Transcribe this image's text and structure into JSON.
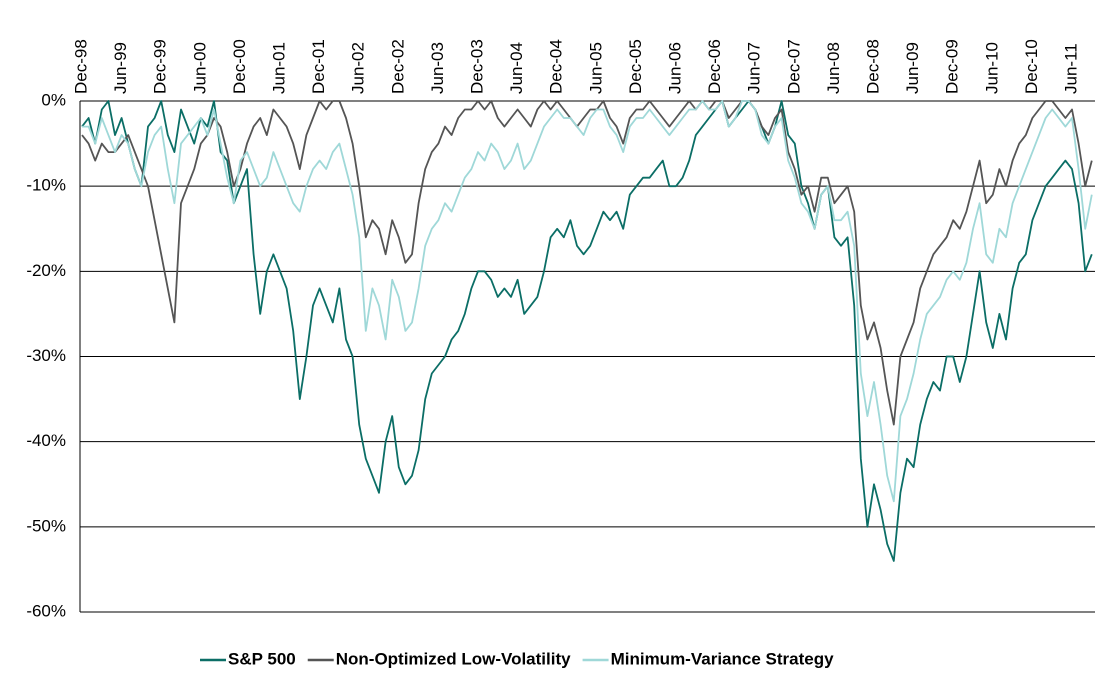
{
  "chart_data": {
    "type": "line",
    "categories": [
      "Dec-98",
      null,
      null,
      null,
      null,
      null,
      "Jun-99",
      null,
      null,
      null,
      null,
      null,
      "Dec-99",
      null,
      null,
      null,
      null,
      null,
      "Jun-00",
      null,
      null,
      null,
      null,
      null,
      "Dec-00",
      null,
      null,
      null,
      null,
      null,
      "Jun-01",
      null,
      null,
      null,
      null,
      null,
      "Dec-01",
      null,
      null,
      null,
      null,
      null,
      "Jun-02",
      null,
      null,
      null,
      null,
      null,
      "Dec-02",
      null,
      null,
      null,
      null,
      null,
      "Jun-03",
      null,
      null,
      null,
      null,
      null,
      "Dec-03",
      null,
      null,
      null,
      null,
      null,
      "Jun-04",
      null,
      null,
      null,
      null,
      null,
      "Dec-04",
      null,
      null,
      null,
      null,
      null,
      "Jun-05",
      null,
      null,
      null,
      null,
      null,
      "Dec-05",
      null,
      null,
      null,
      null,
      null,
      "Jun-06",
      null,
      null,
      null,
      null,
      null,
      "Dec-06",
      null,
      null,
      null,
      null,
      null,
      "Jun-07",
      null,
      null,
      null,
      null,
      null,
      "Dec-07",
      null,
      null,
      null,
      null,
      null,
      "Jun-08",
      null,
      null,
      null,
      null,
      null,
      "Dec-08",
      null,
      null,
      null,
      null,
      null,
      "Jun-09",
      null,
      null,
      null,
      null,
      null,
      "Dec-09",
      null,
      null,
      null,
      null,
      null,
      "Jun-10",
      null,
      null,
      null,
      null,
      null,
      "Dec-10",
      null,
      null,
      null,
      null,
      null,
      "Jun-11",
      null,
      null,
      null
    ],
    "series": [
      {
        "name": "S&P 500",
        "color": "#0b6e66",
        "values": [
          -3,
          -2,
          -5,
          -1,
          0,
          -4,
          -2,
          -5,
          -8,
          -10,
          -3,
          -2,
          0,
          -4,
          -6,
          -1,
          -3,
          -5,
          -2,
          -3,
          0,
          -6,
          -7,
          -12,
          -10,
          -8,
          -18,
          -25,
          -20,
          -18,
          -20,
          -22,
          -27,
          -35,
          -30,
          -24,
          -22,
          -24,
          -26,
          -22,
          -28,
          -30,
          -38,
          -42,
          -44,
          -46,
          -40,
          -37,
          -43,
          -45,
          -44,
          -41,
          -35,
          -32,
          -31,
          -30,
          -28,
          -27,
          -25,
          -22,
          -20,
          -20,
          -21,
          -23,
          -22,
          -23,
          -21,
          -25,
          -24,
          -23,
          -20,
          -16,
          -15,
          -16,
          -14,
          -17,
          -18,
          -17,
          -15,
          -13,
          -14,
          -13,
          -15,
          -11,
          -10,
          -9,
          -9,
          -8,
          -7,
          -10,
          -10,
          -9,
          -7,
          -4,
          -3,
          -2,
          -1,
          0,
          -3,
          -2,
          -1,
          0,
          -1,
          -3,
          -5,
          -3,
          0,
          -4,
          -5,
          -10,
          -12,
          -15,
          -11,
          -10,
          -16,
          -17,
          -16,
          -24,
          -42,
          -50,
          -45,
          -48,
          -52,
          -54,
          -46,
          -42,
          -43,
          -38,
          -35,
          -33,
          -34,
          -30,
          -30,
          -33,
          -30,
          -25,
          -20,
          -26,
          -29,
          -25,
          -28,
          -22,
          -19,
          -18,
          -14,
          -12,
          -10,
          -9,
          -8,
          -7,
          -8,
          -12,
          -20,
          -18
        ]
      },
      {
        "name": "Non-Optimized Low-Volatility",
        "color": "#555555",
        "values": [
          -4,
          -5,
          -7,
          -5,
          -6,
          -6,
          -5,
          -4,
          -6,
          -8,
          -10,
          -14,
          -18,
          -22,
          -26,
          -12,
          -10,
          -8,
          -5,
          -4,
          -2,
          -3,
          -6,
          -10,
          -8,
          -5,
          -3,
          -2,
          -4,
          -1,
          -2,
          -3,
          -5,
          -8,
          -4,
          -2,
          0,
          -1,
          0,
          0,
          -2,
          -5,
          -10,
          -16,
          -14,
          -15,
          -18,
          -14,
          -16,
          -19,
          -18,
          -12,
          -8,
          -6,
          -5,
          -3,
          -4,
          -2,
          -1,
          -1,
          0,
          -1,
          0,
          -2,
          -3,
          -2,
          -1,
          -2,
          -3,
          -1,
          0,
          -1,
          0,
          -1,
          -2,
          -3,
          -2,
          -1,
          -1,
          0,
          -2,
          -3,
          -5,
          -2,
          -1,
          -1,
          0,
          -1,
          -2,
          -3,
          -2,
          -1,
          0,
          -1,
          0,
          -1,
          0,
          0,
          -2,
          -1,
          0,
          0,
          -1,
          -3,
          -4,
          -2,
          -1,
          -6,
          -8,
          -11,
          -10,
          -13,
          -9,
          -9,
          -12,
          -11,
          -10,
          -13,
          -24,
          -28,
          -26,
          -29,
          -34,
          -38,
          -30,
          -28,
          -26,
          -22,
          -20,
          -18,
          -17,
          -16,
          -14,
          -15,
          -13,
          -10,
          -7,
          -12,
          -11,
          -8,
          -10,
          -7,
          -5,
          -4,
          -2,
          -1,
          0,
          0,
          -1,
          -2,
          -1,
          -5,
          -10,
          -7
        ]
      },
      {
        "name": "Minimum-Variance Strategy",
        "color": "#9fd8d8",
        "values": [
          -3,
          -3,
          -5,
          -2,
          -4,
          -6,
          -4,
          -5,
          -8,
          -10,
          -6,
          -4,
          -3,
          -8,
          -12,
          -5,
          -4,
          -3,
          -2,
          -4,
          -1,
          -5,
          -9,
          -12,
          -7,
          -6,
          -8,
          -10,
          -9,
          -6,
          -8,
          -10,
          -12,
          -13,
          -10,
          -8,
          -7,
          -8,
          -6,
          -5,
          -8,
          -11,
          -16,
          -27,
          -22,
          -24,
          -28,
          -21,
          -23,
          -27,
          -26,
          -22,
          -17,
          -15,
          -14,
          -12,
          -13,
          -11,
          -9,
          -8,
          -6,
          -7,
          -5,
          -6,
          -8,
          -7,
          -5,
          -8,
          -7,
          -5,
          -3,
          -2,
          -1,
          -2,
          -2,
          -3,
          -4,
          -2,
          -1,
          -1,
          -3,
          -4,
          -6,
          -3,
          -2,
          -2,
          -1,
          -2,
          -3,
          -4,
          -3,
          -2,
          -1,
          -1,
          0,
          -1,
          -1,
          0,
          -3,
          -2,
          0,
          0,
          -1,
          -4,
          -5,
          -3,
          -2,
          -7,
          -9,
          -12,
          -13,
          -15,
          -11,
          -10,
          -14,
          -14,
          -13,
          -17,
          -32,
          -37,
          -33,
          -38,
          -44,
          -47,
          -37,
          -35,
          -32,
          -28,
          -25,
          -24,
          -23,
          -21,
          -20,
          -21,
          -19,
          -15,
          -12,
          -18,
          -19,
          -15,
          -16,
          -12,
          -10,
          -8,
          -6,
          -4,
          -2,
          -1,
          -2,
          -3,
          -2,
          -8,
          -15,
          -11
        ]
      }
    ],
    "ylim": [
      -60,
      0
    ],
    "yticks": [
      {
        "value": -60,
        "label": "-60%"
      },
      {
        "value": -50,
        "label": "-50%"
      },
      {
        "value": -40,
        "label": "-40%"
      },
      {
        "value": -30,
        "label": "-30%"
      },
      {
        "value": -20,
        "label": "-20%"
      },
      {
        "value": -10,
        "label": "-10%"
      },
      {
        "value": 0,
        "label": "0%"
      }
    ],
    "grid": true,
    "legend": "bottom"
  }
}
